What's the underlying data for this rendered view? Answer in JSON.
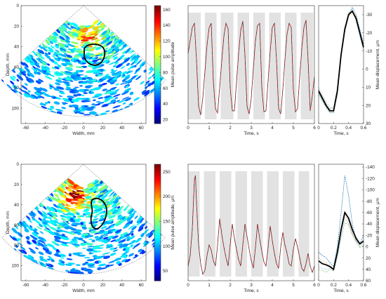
{
  "chart_data": [
    {
      "type": "heatmap",
      "panel": "top-sector",
      "xlabel": "Width, mm",
      "ylabel": "Depth, mm",
      "xticks": [
        "-60",
        "-40",
        "-20",
        "0",
        "20",
        "40",
        "60"
      ],
      "yticks": [
        "0",
        "20",
        "40",
        "60",
        "80",
        "100"
      ],
      "xlim": [
        -65,
        65
      ],
      "ylim": [
        0,
        115
      ],
      "colorbar_label": "Mean pulse amplitude",
      "colorbar_ticks": [
        "20",
        "40",
        "60",
        "80",
        "100",
        "120",
        "140",
        "160"
      ],
      "colorbar_range": [
        15,
        165
      ]
    },
    {
      "type": "line",
      "panel": "top-timeseries",
      "xlabel": "Time, s",
      "ylabel": "Mean displacement, μm",
      "xticks": [
        "0",
        "1",
        "2",
        "3",
        "4",
        "5",
        "6"
      ],
      "xlim": [
        0,
        6
      ],
      "shaded_intervals": [
        [
          0.0,
          0.6
        ],
        [
          0.8,
          1.35
        ],
        [
          1.55,
          2.15
        ],
        [
          2.35,
          2.9
        ],
        [
          3.1,
          3.65
        ],
        [
          3.85,
          4.4
        ],
        [
          4.6,
          5.15
        ],
        [
          5.35,
          5.95
        ]
      ],
      "series": [
        {
          "color": "#d62728",
          "x": [
            0.0,
            0.1,
            0.2,
            0.3,
            0.4,
            0.5,
            0.6,
            0.7,
            0.8,
            0.9,
            1.0,
            1.1,
            1.2,
            1.3,
            1.4,
            1.5,
            1.6,
            1.7,
            1.8,
            1.9,
            2.0,
            2.1,
            2.2,
            2.3,
            2.4,
            2.5,
            2.6,
            2.7,
            2.8,
            2.9,
            3.0,
            3.1,
            3.2,
            3.3,
            3.4,
            3.5,
            3.6,
            3.7,
            3.8,
            3.9,
            4.0,
            4.1,
            4.2,
            4.3,
            4.4,
            4.5,
            4.6,
            4.7,
            4.8,
            4.9,
            5.0,
            5.1,
            5.2,
            5.3,
            5.4,
            5.5,
            5.6,
            5.7,
            5.8,
            5.9,
            6.0
          ],
          "y": [
            0.62,
            0.74,
            0.86,
            0.9,
            0.55,
            0.12,
            0.04,
            0.2,
            0.45,
            0.7,
            0.86,
            0.9,
            0.35,
            0.1,
            0.06,
            0.3,
            0.55,
            0.78,
            0.9,
            0.85,
            0.3,
            0.08,
            0.08,
            0.35,
            0.62,
            0.84,
            0.92,
            0.6,
            0.12,
            0.05,
            0.2,
            0.48,
            0.74,
            0.88,
            0.9,
            0.3,
            0.07,
            0.08,
            0.36,
            0.64,
            0.86,
            0.9,
            0.55,
            0.1,
            0.05,
            0.28,
            0.56,
            0.8,
            0.9,
            0.86,
            0.28,
            0.07,
            0.1,
            0.4,
            0.66,
            0.86,
            0.93,
            0.55,
            0.08,
            0.22,
            0.4
          ]
        }
      ]
    },
    {
      "type": "line",
      "panel": "top-average",
      "xlabel": "Time, s",
      "ylabel": "Mean displacement, μm",
      "xticks": [
        "0",
        "0.2",
        "0.4",
        "0.6"
      ],
      "yticks": [
        "-30",
        "-20",
        "-10",
        "0",
        "10",
        "20",
        "30"
      ],
      "xlim": [
        0,
        0.6
      ],
      "ylim": [
        30,
        -35
      ],
      "series": [
        {
          "color": "#000000",
          "x": [
            0,
            0.05,
            0.1,
            0.15,
            0.2,
            0.25,
            0.3,
            0.35,
            0.4,
            0.45,
            0.5,
            0.55,
            0.6
          ],
          "y": [
            12,
            16,
            20,
            23,
            23,
            12,
            -8,
            -22,
            -30,
            -32,
            -28,
            -20,
            -12
          ]
        },
        {
          "color": "#1f77b4",
          "x": [
            0,
            0.05,
            0.1,
            0.15,
            0.2,
            0.25,
            0.3,
            0.35,
            0.4,
            0.45,
            0.5,
            0.55,
            0.6
          ],
          "y": [
            13,
            17,
            21,
            24,
            24,
            14,
            -7,
            -21,
            -30,
            -34,
            -30,
            -22,
            -14
          ]
        },
        {
          "color": "#9ecae1",
          "x": [
            0,
            0.05,
            0.1,
            0.15,
            0.2,
            0.25,
            0.3,
            0.35,
            0.4,
            0.45,
            0.5,
            0.55,
            0.6
          ],
          "y": [
            10,
            14,
            18,
            21,
            22,
            10,
            -9,
            -23,
            -31,
            -33,
            -27,
            -18,
            -10
          ]
        },
        {
          "color": "#d4b483",
          "x": [
            0,
            0.05,
            0.1,
            0.15,
            0.2,
            0.25,
            0.3,
            0.35,
            0.4,
            0.45,
            0.5,
            0.55,
            0.6
          ],
          "y": [
            11,
            15,
            19,
            22,
            24,
            13,
            -6,
            -20,
            -29,
            -31,
            -27,
            -19,
            -11
          ]
        },
        {
          "color": "#8fbf7f",
          "x": [
            0,
            0.05,
            0.1,
            0.15,
            0.2,
            0.25,
            0.3,
            0.35,
            0.4,
            0.45,
            0.5,
            0.55,
            0.6
          ],
          "y": [
            14,
            18,
            21,
            22,
            21,
            11,
            -8,
            -22,
            -31,
            -32,
            -29,
            -21,
            -13
          ]
        }
      ]
    },
    {
      "type": "heatmap",
      "panel": "bottom-sector",
      "xlabel": "Width, mm",
      "ylabel": "Depth, mm",
      "xticks": [
        "-60",
        "-40",
        "-20",
        "0",
        "20",
        "40",
        "60"
      ],
      "yticks": [
        "0",
        "20",
        "40",
        "60",
        "80",
        "100"
      ],
      "xlim": [
        -65,
        65
      ],
      "ylim": [
        0,
        115
      ],
      "colorbar_label": "Mean pulse amplitude, μm",
      "colorbar_ticks": [
        "50",
        "100",
        "150",
        "200",
        "250"
      ],
      "colorbar_range": [
        30,
        265
      ]
    },
    {
      "type": "line",
      "panel": "bottom-timeseries",
      "xlabel": "Time, s",
      "ylabel": "",
      "xticks": [
        "0",
        "1",
        "2",
        "3",
        "4",
        "5",
        "6"
      ],
      "xlim": [
        0,
        6
      ],
      "shaded_intervals": [
        [
          0.0,
          0.55
        ],
        [
          0.75,
          1.3
        ],
        [
          1.5,
          2.05
        ],
        [
          2.25,
          2.8
        ],
        [
          3.0,
          3.55
        ],
        [
          3.75,
          4.3
        ],
        [
          4.5,
          5.05
        ],
        [
          5.25,
          5.75
        ]
      ],
      "series": [
        {
          "color": "#d62728",
          "x": [
            0.0,
            0.1,
            0.2,
            0.3,
            0.35,
            0.4,
            0.5,
            0.6,
            0.7,
            0.8,
            0.9,
            1.0,
            1.1,
            1.2,
            1.3,
            1.4,
            1.5,
            1.6,
            1.7,
            1.8,
            1.9,
            2.0,
            2.1,
            2.2,
            2.3,
            2.4,
            2.5,
            2.6,
            2.7,
            2.8,
            2.9,
            3.0,
            3.1,
            3.2,
            3.3,
            3.4,
            3.5,
            3.6,
            3.7,
            3.8,
            3.9,
            4.0,
            4.1,
            4.2,
            4.3,
            4.4,
            4.5,
            4.6,
            4.7,
            4.8,
            4.9,
            5.0,
            5.1,
            5.2,
            5.3,
            5.4,
            5.5,
            5.6,
            5.7,
            5.8,
            5.9,
            6.0
          ],
          "y": [
            0.1,
            0.2,
            0.45,
            0.92,
            0.96,
            0.7,
            0.3,
            0.12,
            0.02,
            0.06,
            0.2,
            0.3,
            0.25,
            0.15,
            0.1,
            0.3,
            0.55,
            0.4,
            0.28,
            0.18,
            0.1,
            0.3,
            0.5,
            0.36,
            0.26,
            0.16,
            0.1,
            0.3,
            0.5,
            0.38,
            0.26,
            0.15,
            0.08,
            0.28,
            0.5,
            0.36,
            0.24,
            0.14,
            0.1,
            0.28,
            0.48,
            0.34,
            0.22,
            0.12,
            0.08,
            0.28,
            0.42,
            0.3,
            0.22,
            0.12,
            0.1,
            0.26,
            0.36,
            0.28,
            0.18,
            0.08,
            0.05,
            0.12,
            0.22,
            0.1,
            0.04,
            0.1
          ]
        }
      ]
    },
    {
      "type": "line",
      "panel": "bottom-average",
      "xlabel": "Time, s",
      "ylabel": "Mean displacement, μm",
      "xticks": [
        "0",
        "0.2",
        "0.4",
        "0.6"
      ],
      "yticks": [
        "-140",
        "-120",
        "-100",
        "-80",
        "-60",
        "-40",
        "-20",
        "0",
        "20",
        "40",
        "60"
      ],
      "xlim": [
        0,
        0.6
      ],
      "ylim": [
        60,
        -145
      ],
      "series": [
        {
          "color": "#000000",
          "x": [
            0,
            0.05,
            0.1,
            0.15,
            0.2,
            0.25,
            0.3,
            0.35,
            0.4,
            0.45,
            0.5,
            0.55,
            0.6
          ],
          "y": [
            25,
            30,
            32,
            35,
            40,
            10,
            -30,
            -60,
            -50,
            -30,
            -15,
            -5,
            -10
          ]
        },
        {
          "color": "#1f77b4",
          "x": [
            0,
            0.05,
            0.1,
            0.15,
            0.2,
            0.25,
            0.3,
            0.35,
            0.4,
            0.45,
            0.5,
            0.55,
            0.6
          ],
          "y": [
            10,
            15,
            20,
            28,
            35,
            0,
            -60,
            -125,
            -90,
            -40,
            -10,
            -5,
            -20
          ]
        },
        {
          "color": "#9ecae1",
          "x": [
            0,
            0.05,
            0.1,
            0.15,
            0.2,
            0.25,
            0.3,
            0.35,
            0.4,
            0.45,
            0.5,
            0.55,
            0.6
          ],
          "y": [
            35,
            38,
            40,
            38,
            42,
            15,
            -20,
            -50,
            -40,
            -25,
            -10,
            0,
            -5
          ]
        },
        {
          "color": "#d4b483",
          "x": [
            0,
            0.05,
            0.1,
            0.15,
            0.2,
            0.25,
            0.3,
            0.35,
            0.4,
            0.45,
            0.5,
            0.55,
            0.6
          ],
          "y": [
            20,
            25,
            28,
            33,
            38,
            12,
            -25,
            -55,
            -45,
            -22,
            -12,
            -3,
            -8
          ]
        },
        {
          "color": "#8fbf7f",
          "x": [
            0,
            0.05,
            0.1,
            0.15,
            0.2,
            0.25,
            0.3,
            0.35,
            0.4,
            0.45,
            0.5,
            0.55,
            0.6
          ],
          "y": [
            40,
            42,
            45,
            40,
            43,
            18,
            -15,
            -42,
            -38,
            -20,
            -8,
            2,
            -2
          ]
        }
      ]
    }
  ]
}
